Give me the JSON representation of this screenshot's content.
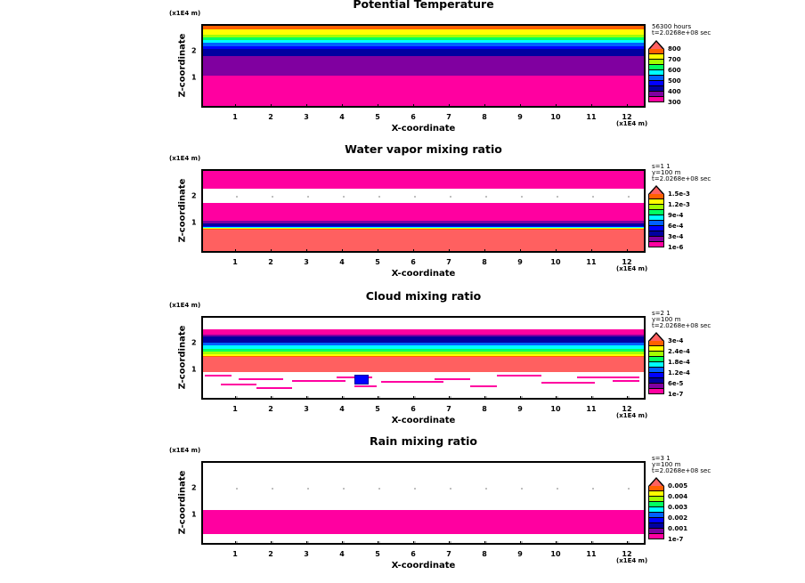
{
  "chart_data": [
    {
      "type": "heatmap",
      "title": "Potential Temperature",
      "xlabel": "X-coordinate",
      "ylabel": "Z-coordinate",
      "x_unit": "(x1E4 m)",
      "y_unit": "(x1E4 m)",
      "xticks": [
        "1",
        "2",
        "3",
        "4",
        "5",
        "6",
        "7",
        "8",
        "9",
        "10",
        "11",
        "12"
      ],
      "yticks": [
        "1",
        "2"
      ],
      "info": [
        "56300 hours",
        "t=2.0268e+08 sec"
      ],
      "colorbar_labels": [
        "800",
        "700",
        "600",
        "500",
        "400",
        "300"
      ]
    },
    {
      "type": "heatmap",
      "title": "Water vapor mixing ratio",
      "xlabel": "X-coordinate",
      "ylabel": "Z-coordinate",
      "x_unit": "(x1E4 m)",
      "y_unit": "(x1E4 m)",
      "xticks": [
        "1",
        "2",
        "3",
        "4",
        "5",
        "6",
        "7",
        "8",
        "9",
        "10",
        "11",
        "12"
      ],
      "yticks": [
        "1",
        "2"
      ],
      "info": [
        "s=1 1",
        "y=100 m",
        "t=2.0268e+08 sec"
      ],
      "colorbar_labels": [
        "1.5e-3",
        "1.2e-3",
        "9e-4",
        "6e-4",
        "3e-4",
        "1e-6"
      ]
    },
    {
      "type": "heatmap",
      "title": "Cloud mixing ratio",
      "xlabel": "X-coordinate",
      "ylabel": "Z-coordinate",
      "x_unit": "(x1E4 m)",
      "y_unit": "(x1E4 m)",
      "xticks": [
        "1",
        "2",
        "3",
        "4",
        "5",
        "6",
        "7",
        "8",
        "9",
        "10",
        "11",
        "12"
      ],
      "yticks": [
        "1",
        "2"
      ],
      "info": [
        "s=2 1",
        "y=100 m",
        "t=2.0268e+08 sec"
      ],
      "colorbar_labels": [
        "3e-4",
        "2.4e-4",
        "1.8e-4",
        "1.2e-4",
        "6e-5",
        "1e-7"
      ]
    },
    {
      "type": "heatmap",
      "title": "Rain mixing ratio",
      "xlabel": "X-coordinate",
      "ylabel": "Z-coordinate",
      "x_unit": "(x1E4 m)",
      "y_unit": "(x1E4 m)",
      "xticks": [
        "1",
        "2",
        "3",
        "4",
        "5",
        "6",
        "7",
        "8",
        "9",
        "10",
        "11",
        "12"
      ],
      "yticks": [
        "1",
        "2"
      ],
      "info": [
        "s=3 1",
        "y=100 m",
        "t=2.0268e+08 sec"
      ],
      "colorbar_labels": [
        "0.005",
        "0.004",
        "0.003",
        "0.002",
        "0.001",
        "1e-7"
      ]
    }
  ],
  "colors": {
    "salmon": "#ff6060",
    "orange": "#ff6000",
    "yellow": "#ffff00",
    "yellowgreen": "#a0ff00",
    "green": "#00ff60",
    "cyan": "#00ffff",
    "lightblue": "#0060ff",
    "blue": "#0000ff",
    "darkblue": "#0000a0",
    "purple": "#8000a0",
    "pink": "#ff00a0"
  }
}
